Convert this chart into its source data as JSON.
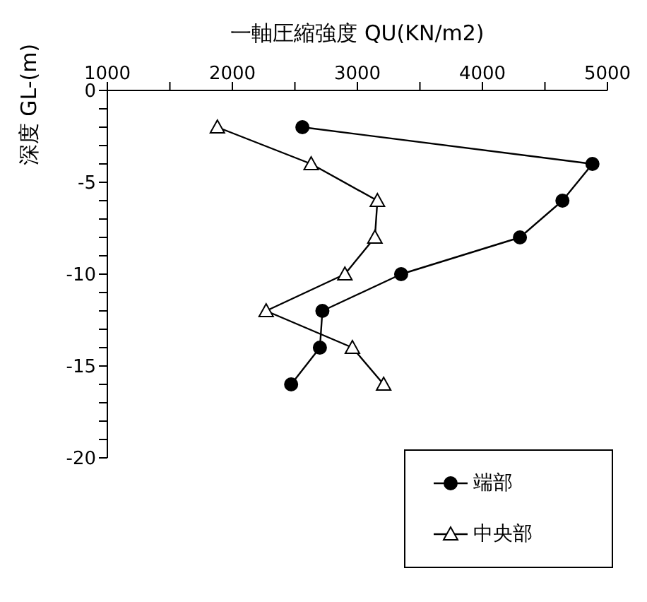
{
  "chart_data": {
    "type": "line",
    "xlabel": "一軸圧縮強度 QU(KN/m2)",
    "ylabel": "深度 GL-(m)",
    "xlim": [
      1000,
      5000
    ],
    "xticks": [
      1000,
      {
        "value": 1500,
        "label": null
      },
      2000,
      {
        "value": 2500,
        "label": null
      },
      3000,
      {
        "value": 3500,
        "label": null
      },
      4000,
      {
        "value": 4500,
        "label": null
      },
      5000
    ],
    "ylim": [
      -20,
      0
    ],
    "yticks": [
      0,
      {
        "value": -1,
        "label": null
      },
      {
        "value": -2,
        "label": null
      },
      {
        "value": -3,
        "label": null
      },
      {
        "value": -4,
        "label": null
      },
      -5,
      {
        "value": -6,
        "label": null
      },
      {
        "value": -7,
        "label": null
      },
      {
        "value": -8,
        "label": null
      },
      {
        "value": -9,
        "label": null
      },
      -10,
      {
        "value": -11,
        "label": null
      },
      {
        "value": -12,
        "label": null
      },
      {
        "value": -13,
        "label": null
      },
      {
        "value": -14,
        "label": null
      },
      -15,
      {
        "value": -16,
        "label": null
      },
      {
        "value": -17,
        "label": null
      },
      {
        "value": -18,
        "label": null
      },
      {
        "value": -19,
        "label": null
      },
      -20
    ],
    "grid": false,
    "legend": "bottom right",
    "line_style": "solid",
    "series": [
      {
        "name": "端部",
        "color": "#000000",
        "marker": "circle",
        "x": [
          2560,
          4880,
          4640,
          4300,
          3350,
          2720,
          2700,
          2470
        ],
        "values": [
          -2,
          -4,
          -6,
          -8,
          -10,
          -12,
          -14,
          -16
        ]
      },
      {
        "name": "中央部",
        "color": "#000000",
        "marker": "triangle",
        "x": [
          1880,
          2630,
          3160,
          3140,
          2900,
          2270,
          2960,
          3210
        ],
        "values": [
          -2,
          -4,
          -6,
          -8,
          -10,
          -12,
          -14,
          -16
        ]
      }
    ]
  }
}
